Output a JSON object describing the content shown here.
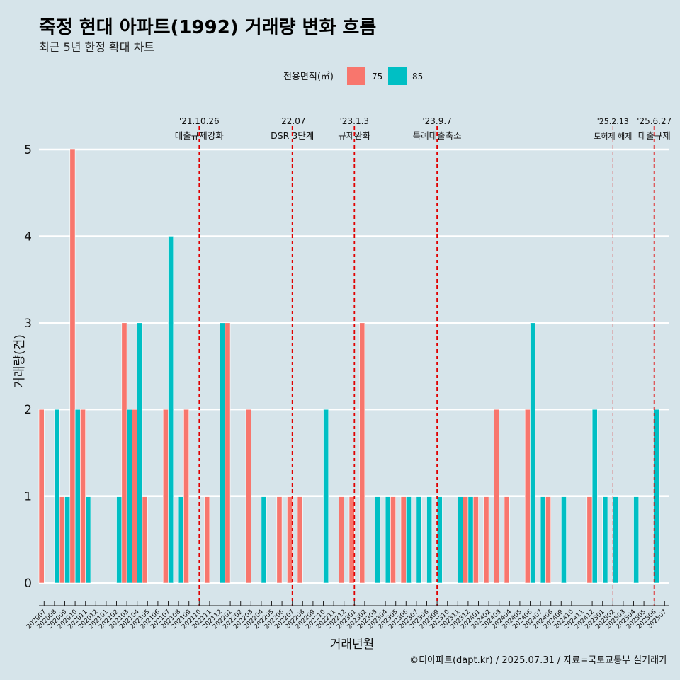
{
  "title": "죽정 현대 아파트(1992) 거래량 변화 흐름",
  "subtitle": "최근 5년 한정 확대 차트",
  "caption": "©디아파트(dapt.kr) / 2025.07.31 / 자료=국토교통부 실거래가",
  "colors": {
    "s75": "#f8766d",
    "s85": "#00bfc4",
    "background": "#d6e4ea",
    "grid": "#ffffff",
    "vline": "#e00000"
  },
  "chart_data": {
    "type": "bar",
    "title": "죽정 현대 아파트(1992) 거래량 변화 흐름",
    "subtitle": "최근 5년 한정 확대 차트",
    "xlabel": "거래년월",
    "ylabel": "거래량(건)",
    "ylim": [
      0,
      5
    ],
    "yticks": [
      0,
      1,
      2,
      3,
      4,
      5
    ],
    "legend": {
      "title": "전용면적(㎡)",
      "position": "top",
      "entries": [
        "75",
        "85"
      ]
    },
    "categories": [
      "202007",
      "202008",
      "202009",
      "202010",
      "202011",
      "202012",
      "202101",
      "202102",
      "202103",
      "202104",
      "202105",
      "202106",
      "202107",
      "202108",
      "202109",
      "202110",
      "202111",
      "202112",
      "202201",
      "202202",
      "202203",
      "202204",
      "202205",
      "202206",
      "202207",
      "202208",
      "202209",
      "202210",
      "202211",
      "202212",
      "202301",
      "202302",
      "202303",
      "202304",
      "202305",
      "202306",
      "202307",
      "202308",
      "202309",
      "202310",
      "202311",
      "202312",
      "202401",
      "202402",
      "202403",
      "202404",
      "202405",
      "202406",
      "202407",
      "202408",
      "202409",
      "202410",
      "202411",
      "202412",
      "202501",
      "202502",
      "202503",
      "202504",
      "202505",
      "202506",
      "202507"
    ],
    "series": [
      {
        "name": "75",
        "values": [
          2,
          0,
          1,
          5,
          2,
          0,
          0,
          0,
          3,
          2,
          1,
          0,
          2,
          0,
          2,
          0,
          1,
          0,
          3,
          0,
          2,
          0,
          0,
          1,
          1,
          1,
          0,
          0,
          0,
          1,
          1,
          3,
          0,
          0,
          1,
          1,
          0,
          0,
          0,
          0,
          0,
          1,
          1,
          1,
          2,
          1,
          0,
          2,
          0,
          1,
          0,
          0,
          0,
          1,
          0,
          0,
          0,
          0,
          0,
          0,
          0
        ]
      },
      {
        "name": "85",
        "values": [
          0,
          2,
          1,
          2,
          1,
          0,
          0,
          1,
          2,
          3,
          0,
          0,
          4,
          1,
          0,
          0,
          0,
          3,
          0,
          0,
          0,
          1,
          0,
          0,
          0,
          0,
          0,
          2,
          0,
          0,
          0,
          0,
          1,
          1,
          0,
          1,
          1,
          1,
          1,
          0,
          1,
          1,
          0,
          0,
          0,
          0,
          0,
          3,
          1,
          0,
          1,
          0,
          0,
          2,
          1,
          1,
          0,
          1,
          0,
          2,
          0
        ]
      }
    ],
    "annotations": [
      {
        "category": "202110",
        "date": "'21.10.26",
        "label": "대출규제강화",
        "style": "dashed"
      },
      {
        "category": "202207",
        "date": "'22.07",
        "label": "DSR 3단계",
        "style": "dashed"
      },
      {
        "category": "202301",
        "date": "'23.1.3",
        "label": "규제완화",
        "style": "dashed"
      },
      {
        "category": "202309",
        "date": "'23.9.7",
        "label": "특례대출축소",
        "style": "dashed"
      },
      {
        "category": "202502",
        "date": "'25.2.13",
        "label": "토허제 해제",
        "style": "thin"
      },
      {
        "category": "202506",
        "date": "'25.6.27",
        "label": "대출규제",
        "style": "dashed"
      }
    ]
  }
}
